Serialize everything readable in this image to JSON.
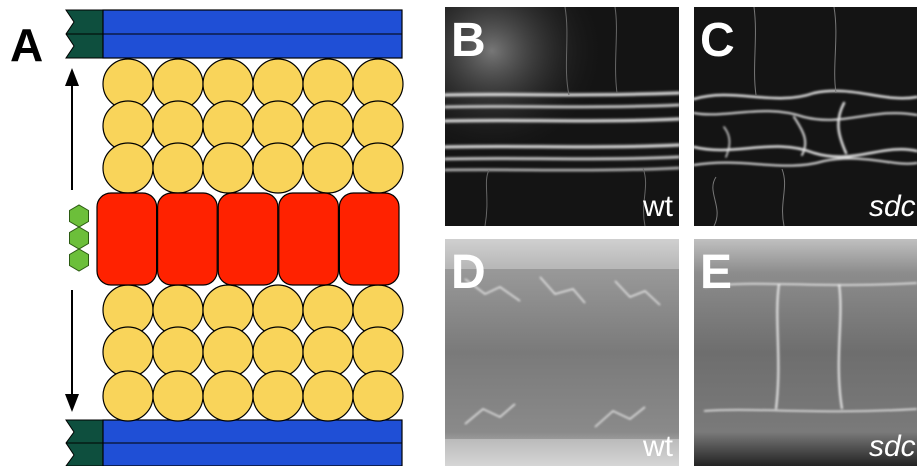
{
  "figure": {
    "panel_a": {
      "letter": "A",
      "colors": {
        "somite_boundary": "#1f4fd6",
        "boundary_dark": "#0e4f3e",
        "round_cells": "#f9d45a",
        "notochord_cells": "#ff2200",
        "signal_hexagons": "#6cbf3a"
      },
      "icons": [
        "up-arrow-icon",
        "down-arrow-icon",
        "signal-hexagon-icon"
      ]
    },
    "panels": [
      {
        "letter": "B",
        "genotype": "wt",
        "italic": false
      },
      {
        "letter": "C",
        "genotype": "sdc",
        "italic": true
      },
      {
        "letter": "D",
        "genotype": "wt",
        "italic": false
      },
      {
        "letter": "E",
        "genotype": "sdc",
        "italic": true
      }
    ]
  }
}
